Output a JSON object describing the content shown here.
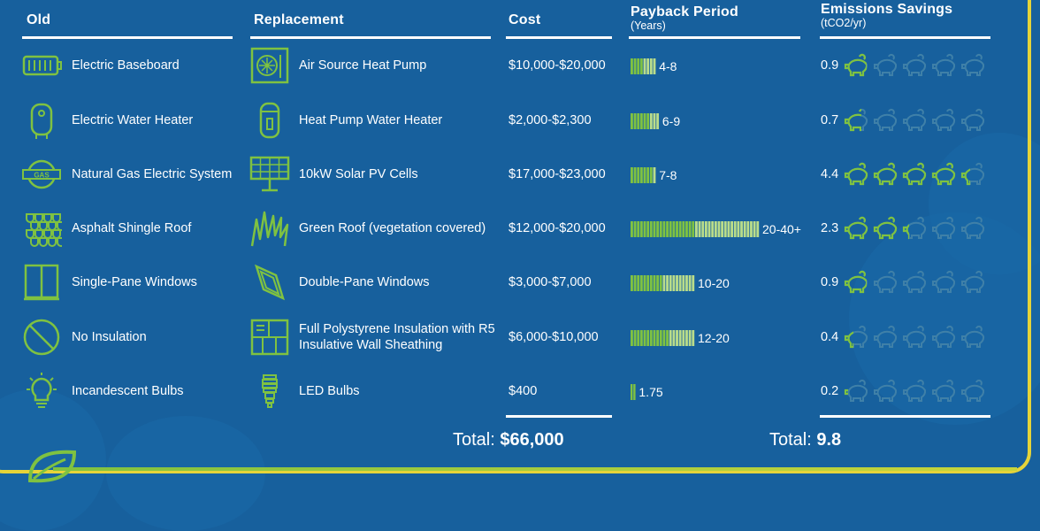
{
  "headers": {
    "old": "Old",
    "replacement": "Replacement",
    "cost": "Cost",
    "payback": "Payback Period",
    "payback_sub": "(Years)",
    "emissions": "Emissions Savings",
    "emissions_sub": "(tCO2/yr)"
  },
  "rows": [
    {
      "old": "Electric Baseboard",
      "old_icon": "baseboard-heater-icon",
      "replacement": "Air Source Heat Pump",
      "rep_icon": "heat-pump-icon",
      "cost": "$10,000-$20,000",
      "payback": "4-8",
      "emissions": "0.9"
    },
    {
      "old": "Electric Water Heater",
      "old_icon": "water-heater-icon",
      "replacement": "Heat Pump Water Heater",
      "rep_icon": "heat-pump-water-heater-icon",
      "cost": "$2,000-$2,300",
      "payback": "6-9",
      "emissions": "0.7"
    },
    {
      "old": "Natural Gas Electric System",
      "old_icon": "gas-tank-icon",
      "replacement": "10kW Solar PV Cells",
      "rep_icon": "solar-panel-icon",
      "cost": "$17,000-$23,000",
      "payback": "7-8",
      "emissions": "4.4"
    },
    {
      "old": "Asphalt Shingle Roof",
      "old_icon": "shingle-roof-icon",
      "replacement": "Green Roof (vegetation covered)",
      "rep_icon": "grass-icon",
      "cost": "$12,000-$20,000",
      "payback": "20-40+",
      "emissions": "2.3"
    },
    {
      "old": "Single-Pane Windows",
      "old_icon": "window-icon",
      "replacement": "Double-Pane Windows",
      "rep_icon": "double-window-icon",
      "cost": "$3,000-$7,000",
      "payback": "10-20",
      "emissions": "0.9"
    },
    {
      "old": "No Insulation",
      "old_icon": "no-symbol-icon",
      "replacement": "Full Polystyrene Insulation with R5 Insulative Wall Sheathing",
      "rep_icon": "insulation-icon",
      "cost": "$6,000-$10,000",
      "payback": "12-20",
      "emissions": "0.4"
    },
    {
      "old": "Incandescent Bulbs",
      "old_icon": "lightbulb-icon",
      "replacement": "LED Bulbs",
      "rep_icon": "led-bulb-icon",
      "cost": "$400",
      "payback": "1.75",
      "emissions": "0.2"
    }
  ],
  "totals": {
    "label": "Total:",
    "cost": "$66,000",
    "emissions": "9.8"
  },
  "colors": {
    "background": "#17609d",
    "accent_green": "#7fc241",
    "frame_yellow": "#e6d439",
    "dim_pig": "#3f80a8"
  },
  "chart_data": {
    "type": "table",
    "columns": [
      "Old",
      "Replacement",
      "Cost",
      "Payback Period (Years)",
      "Emissions Savings (tCO2/yr)"
    ],
    "payback_years": [
      [
        4,
        8
      ],
      [
        6,
        9
      ],
      [
        7,
        8
      ],
      [
        20,
        40
      ],
      [
        10,
        20
      ],
      [
        12,
        20
      ],
      [
        1.75,
        1.75
      ]
    ],
    "emissions_savings": [
      0.9,
      0.7,
      4.4,
      2.3,
      0.9,
      0.4,
      0.2
    ],
    "pig_scale_max": 5,
    "total_cost": "$66,000",
    "total_emissions": 9.8
  }
}
